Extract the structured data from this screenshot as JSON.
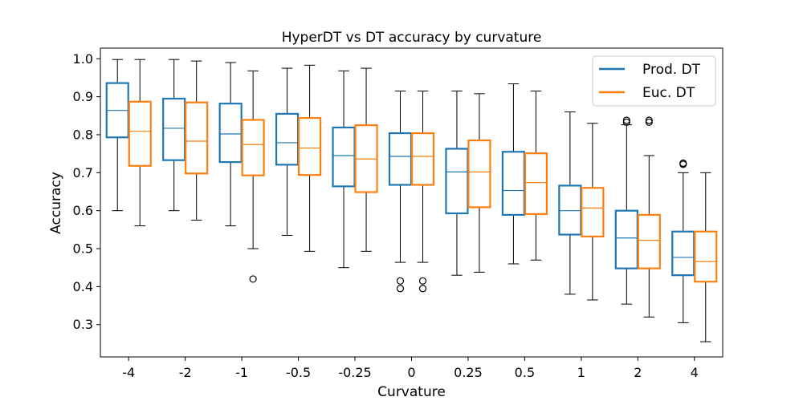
{
  "chart_data": {
    "type": "boxplot",
    "title": "HyperDT vs DT accuracy by curvature",
    "xlabel": "Curvature",
    "ylabel": "Accuracy",
    "ylim": [
      0.215,
      1.028
    ],
    "yticks": [
      "0.3",
      "0.4",
      "0.5",
      "0.6",
      "0.7",
      "0.8",
      "0.9",
      "1.0"
    ],
    "categories": [
      "-4",
      "-2",
      "-1",
      "-0.5",
      "-0.25",
      "0",
      "0.25",
      "0.5",
      "1",
      "2",
      "4"
    ],
    "legend_position": "top-right",
    "grid": false,
    "series": [
      {
        "name": "Prod. DT",
        "color": "#1f77b4",
        "boxes": [
          {
            "whislo": 0.6,
            "q1": 0.793,
            "med": 0.864,
            "q3": 0.936,
            "whishi": 0.998,
            "fliers": []
          },
          {
            "whislo": 0.6,
            "q1": 0.733,
            "med": 0.817,
            "q3": 0.895,
            "whishi": 0.998,
            "fliers": []
          },
          {
            "whislo": 0.56,
            "q1": 0.728,
            "med": 0.802,
            "q3": 0.882,
            "whishi": 0.99,
            "fliers": []
          },
          {
            "whislo": 0.535,
            "q1": 0.721,
            "med": 0.779,
            "q3": 0.855,
            "whishi": 0.975,
            "fliers": []
          },
          {
            "whislo": 0.45,
            "q1": 0.664,
            "med": 0.745,
            "q3": 0.819,
            "whishi": 0.968,
            "fliers": []
          },
          {
            "whislo": 0.464,
            "q1": 0.668,
            "med": 0.743,
            "q3": 0.804,
            "whishi": 0.915,
            "fliers": [
              0.415,
              0.395
            ]
          },
          {
            "whislo": 0.43,
            "q1": 0.593,
            "med": 0.702,
            "q3": 0.763,
            "whishi": 0.915,
            "fliers": []
          },
          {
            "whislo": 0.46,
            "q1": 0.589,
            "med": 0.653,
            "q3": 0.755,
            "whishi": 0.934,
            "fliers": []
          },
          {
            "whislo": 0.38,
            "q1": 0.537,
            "med": 0.6,
            "q3": 0.666,
            "whishi": 0.86,
            "fliers": []
          },
          {
            "whislo": 0.354,
            "q1": 0.448,
            "med": 0.528,
            "q3": 0.6,
            "whishi": 0.826,
            "fliers": [
              0.838,
              0.833
            ]
          },
          {
            "whislo": 0.305,
            "q1": 0.43,
            "med": 0.477,
            "q3": 0.545,
            "whishi": 0.7,
            "fliers": [
              0.725,
              0.722
            ]
          }
        ]
      },
      {
        "name": "Euc. DT",
        "color": "#ff7f0e",
        "boxes": [
          {
            "whislo": 0.56,
            "q1": 0.718,
            "med": 0.809,
            "q3": 0.887,
            "whishi": 0.998,
            "fliers": []
          },
          {
            "whislo": 0.575,
            "q1": 0.698,
            "med": 0.783,
            "q3": 0.885,
            "whishi": 0.994,
            "fliers": []
          },
          {
            "whislo": 0.5,
            "q1": 0.693,
            "med": 0.774,
            "q3": 0.839,
            "whishi": 0.968,
            "fliers": [
              0.42
            ]
          },
          {
            "whislo": 0.493,
            "q1": 0.694,
            "med": 0.765,
            "q3": 0.844,
            "whishi": 0.983,
            "fliers": []
          },
          {
            "whislo": 0.493,
            "q1": 0.649,
            "med": 0.736,
            "q3": 0.825,
            "whishi": 0.975,
            "fliers": []
          },
          {
            "whislo": 0.464,
            "q1": 0.668,
            "med": 0.743,
            "q3": 0.804,
            "whishi": 0.915,
            "fliers": [
              0.415,
              0.395
            ]
          },
          {
            "whislo": 0.438,
            "q1": 0.609,
            "med": 0.702,
            "q3": 0.785,
            "whishi": 0.908,
            "fliers": []
          },
          {
            "whislo": 0.47,
            "q1": 0.591,
            "med": 0.674,
            "q3": 0.751,
            "whishi": 0.915,
            "fliers": []
          },
          {
            "whislo": 0.365,
            "q1": 0.532,
            "med": 0.607,
            "q3": 0.66,
            "whishi": 0.83,
            "fliers": []
          },
          {
            "whislo": 0.32,
            "q1": 0.448,
            "med": 0.522,
            "q3": 0.589,
            "whishi": 0.745,
            "fliers": [
              0.838,
              0.833
            ]
          },
          {
            "whislo": 0.255,
            "q1": 0.413,
            "med": 0.466,
            "q3": 0.545,
            "whishi": 0.7,
            "fliers": []
          }
        ]
      }
    ]
  }
}
